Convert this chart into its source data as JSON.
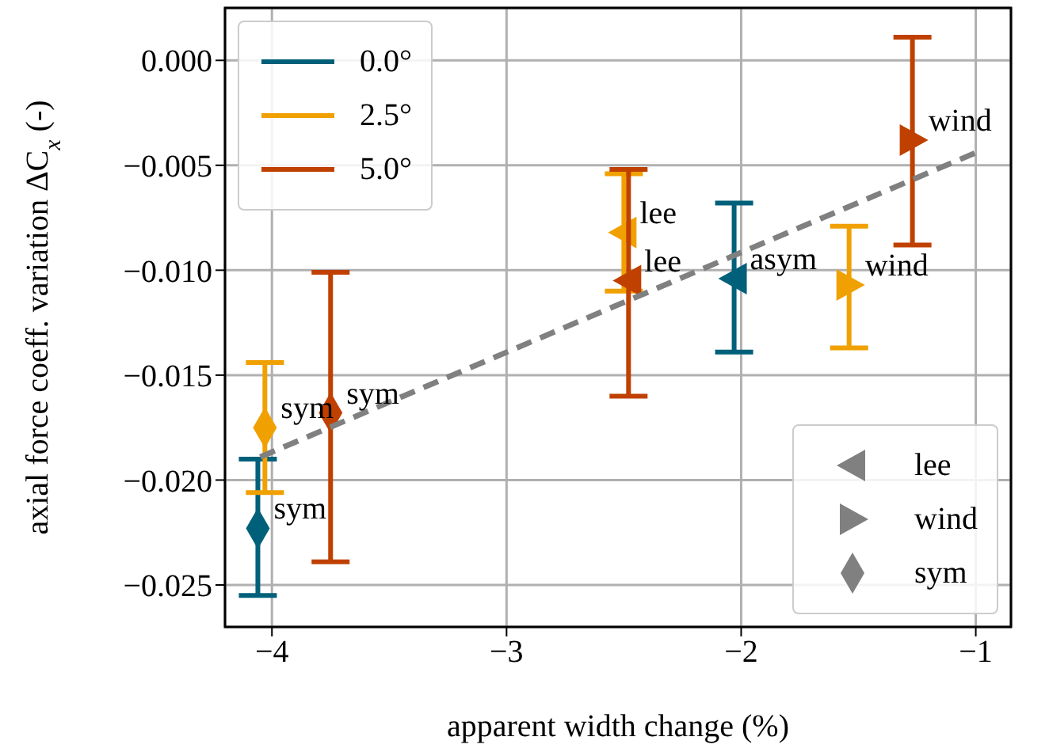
{
  "chart_data": {
    "type": "scatter",
    "xlabel": "apparent width change (%)",
    "ylabel": "axial force coeff. variation ΔC$_{x}$ (-)",
    "xlim": [
      -4.2,
      -0.85
    ],
    "xticks": [
      -4,
      -3,
      -2,
      -1
    ],
    "ylim": [
      -0.027,
      0.0025
    ],
    "yticks": [
      {
        "value": 0,
        "label": "0.000"
      },
      {
        "value": -0.005,
        "label": "−0.005"
      },
      {
        "value": -0.01,
        "label": "−0.010"
      },
      {
        "value": -0.015,
        "label": "−0.015"
      },
      {
        "value": -0.02,
        "label": "−0.020"
      },
      {
        "value": -0.025,
        "label": "−0.025"
      }
    ],
    "grid": true,
    "legend": "top left",
    "series": [
      {
        "name": "0.0°",
        "color": "#00607a",
        "x": [
          -4.06,
          -2.03
        ],
        "values": [
          -0.0223,
          -0.0104
        ],
        "errors": [
          [
            -0.0255,
            -0.019
          ],
          [
            -0.0139,
            -0.0068
          ]
        ],
        "marker": [
          "diamond",
          "triangle-left"
        ],
        "value_labels": [
          "sym",
          "asym"
        ]
      },
      {
        "name": "2.5°",
        "color": "#f0a000",
        "x": [
          -4.03,
          -2.5,
          -1.54
        ],
        "values": [
          -0.0175,
          -0.0082,
          -0.0107
        ],
        "errors": [
          [
            -0.0206,
            -0.0144
          ],
          [
            -0.011,
            -0.0054
          ],
          [
            -0.0137,
            -0.0079
          ]
        ],
        "marker": [
          "diamond",
          "triangle-left",
          "triangle-right"
        ],
        "value_labels": [
          "sym",
          "lee",
          "wind"
        ]
      },
      {
        "name": "5.0°",
        "color": "#c04000",
        "x": [
          -3.75,
          -2.48,
          -1.27
        ],
        "values": [
          -0.0168,
          -0.0105,
          -0.0038
        ],
        "errors": [
          [
            -0.0239,
            -0.0101
          ],
          [
            -0.016,
            -0.0052
          ],
          [
            -0.0088,
            0.0011
          ]
        ],
        "marker": [
          "diamond",
          "triangle-left",
          "triangle-right"
        ],
        "value_labels": [
          "sym",
          "lee",
          "wind"
        ]
      },
      {
        "type": "line",
        "color": "#808080",
        "line_style": "dashed",
        "marker": "none",
        "x": [
          -4.05,
          -1.0
        ],
        "values": [
          -0.0189,
          -0.0044
        ]
      }
    ],
    "annotations": [
      "lee",
      "wind",
      "sym"
    ]
  }
}
